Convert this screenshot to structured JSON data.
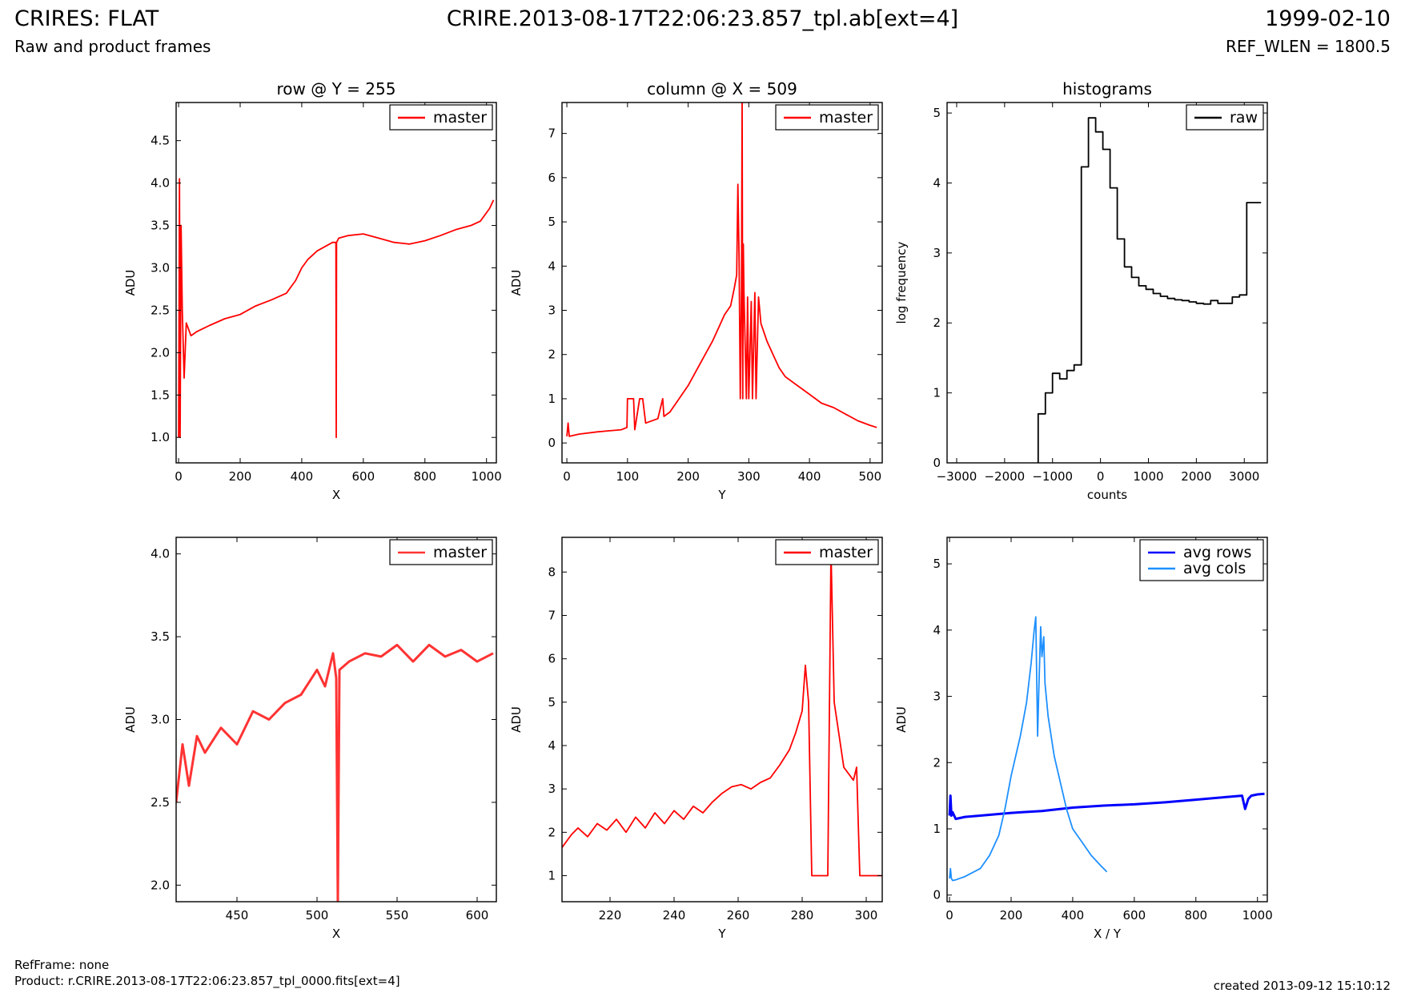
{
  "header": {
    "left_title": "CRIRES: FLAT",
    "left_subtitle": "Raw and product frames",
    "center_title": "CRIRE.2013-08-17T22:06:23.857_tpl.ab[ext=4]",
    "right_date": "1999-02-10",
    "right_subtitle": "REF_WLEN = 1800.5"
  },
  "footer": {
    "refframe": "RefFrame: none",
    "product": "Product: r.CRIRE.2013-08-17T22:06:23.857_tpl_0000.fits[ext=4]",
    "created": "created 2013-09-12 15:10:12"
  },
  "chart_data": [
    {
      "type": "line",
      "title": "row @ Y = 255",
      "xlabel": "X",
      "ylabel": "ADU",
      "xlim": [
        -8,
        1032
      ],
      "ylim": [
        0.7,
        4.95
      ],
      "xticks": [
        0,
        200,
        400,
        600,
        800,
        1000
      ],
      "yticks": [
        1.0,
        1.5,
        2.0,
        2.5,
        3.0,
        3.5,
        4.0,
        4.5
      ],
      "legend_position": "top-right",
      "series": [
        {
          "name": "master",
          "color": "#ff0000",
          "x": [
            0,
            3,
            5,
            8,
            12,
            18,
            25,
            40,
            60,
            100,
            150,
            200,
            250,
            300,
            350,
            380,
            400,
            420,
            450,
            500,
            511,
            512,
            513,
            520,
            550,
            600,
            650,
            700,
            750,
            800,
            850,
            900,
            950,
            980,
            1000,
            1010,
            1023
          ],
          "y": [
            1.0,
            4.05,
            1.0,
            3.5,
            2.5,
            1.7,
            2.35,
            2.2,
            2.25,
            2.32,
            2.4,
            2.45,
            2.55,
            2.62,
            2.7,
            2.85,
            3.0,
            3.1,
            3.2,
            3.3,
            3.3,
            1.0,
            3.3,
            3.35,
            3.38,
            3.4,
            3.35,
            3.3,
            3.28,
            3.32,
            3.38,
            3.45,
            3.5,
            3.55,
            3.65,
            3.7,
            3.8
          ]
        }
      ]
    },
    {
      "type": "line",
      "title": "column @ X = 509",
      "xlabel": "Y",
      "ylabel": "ADU",
      "xlim": [
        -8,
        520
      ],
      "ylim": [
        -0.45,
        7.7
      ],
      "xticks": [
        0,
        100,
        200,
        300,
        400,
        500
      ],
      "yticks": [
        0,
        1,
        2,
        3,
        4,
        5,
        6,
        7
      ],
      "legend_position": "top-right",
      "series": [
        {
          "name": "master",
          "color": "#ff0000",
          "x": [
            0,
            2,
            4,
            20,
            50,
            90,
            99,
            100,
            110,
            112,
            120,
            125,
            130,
            150,
            158,
            160,
            170,
            180,
            200,
            220,
            240,
            250,
            260,
            270,
            276,
            280,
            282,
            284,
            286,
            288,
            289,
            290,
            291,
            292,
            296,
            298,
            300,
            304,
            306,
            310,
            312,
            316,
            318,
            320,
            330,
            340,
            350,
            360,
            380,
            400,
            420,
            440,
            460,
            480,
            500,
            511
          ],
          "y": [
            0.15,
            0.45,
            0.15,
            0.2,
            0.25,
            0.3,
            0.35,
            1.0,
            1.0,
            0.3,
            1.0,
            1.0,
            0.45,
            0.55,
            1.0,
            0.6,
            0.7,
            0.9,
            1.3,
            1.8,
            2.3,
            2.6,
            2.9,
            3.1,
            3.5,
            3.8,
            5.85,
            4.2,
            1.0,
            3.5,
            7.8,
            1.0,
            4.5,
            3.4,
            1.0,
            3.3,
            1.0,
            3.2,
            1.0,
            3.4,
            1.0,
            3.3,
            3.0,
            2.7,
            2.3,
            2.0,
            1.7,
            1.5,
            1.3,
            1.1,
            0.9,
            0.8,
            0.65,
            0.5,
            0.4,
            0.35
          ]
        }
      ]
    },
    {
      "type": "step",
      "title": "histograms",
      "xlabel": "counts",
      "ylabel": "log frequency",
      "xlim": [
        -3200,
        3480
      ],
      "ylim": [
        0,
        5.15
      ],
      "xticks": [
        -3000,
        -2000,
        -1000,
        0,
        1000,
        2000,
        3000
      ],
      "yticks": [
        0,
        1,
        2,
        3,
        4,
        5
      ],
      "legend_position": "top-right",
      "series": [
        {
          "name": "raw",
          "color": "#000000",
          "bin_edges": [
            -1300,
            -1150,
            -1000,
            -850,
            -700,
            -550,
            -400,
            -250,
            -100,
            50,
            200,
            350,
            500,
            650,
            800,
            950,
            1100,
            1250,
            1400,
            1550,
            1700,
            1850,
            2000,
            2150,
            2300,
            2450,
            2600,
            2750,
            2900,
            3050,
            3200,
            3350
          ],
          "log_counts": [
            0.7,
            1.0,
            1.28,
            1.2,
            1.32,
            1.4,
            4.23,
            4.93,
            4.73,
            4.48,
            3.93,
            3.2,
            2.8,
            2.65,
            2.53,
            2.48,
            2.42,
            2.38,
            2.35,
            2.33,
            2.32,
            2.3,
            2.28,
            2.27,
            2.32,
            2.28,
            2.28,
            2.37,
            2.4,
            3.72,
            3.72
          ]
        }
      ]
    },
    {
      "type": "line",
      "title": "",
      "xlabel": "X",
      "ylabel": "ADU",
      "xlim": [
        412,
        612
      ],
      "ylim": [
        1.9,
        4.1
      ],
      "xticks": [
        450,
        500,
        550,
        600
      ],
      "yticks": [
        2.0,
        2.5,
        3.0,
        3.5,
        4.0
      ],
      "legend_position": "top-right",
      "series": [
        {
          "name": "master",
          "color": "#ff3333",
          "x": [
            412,
            416,
            420,
            425,
            430,
            440,
            450,
            460,
            470,
            480,
            490,
            500,
            505,
            510,
            512,
            513,
            514,
            520,
            530,
            540,
            550,
            560,
            570,
            580,
            590,
            600,
            610
          ],
          "y": [
            2.5,
            2.85,
            2.6,
            2.9,
            2.8,
            2.95,
            2.85,
            3.05,
            3.0,
            3.1,
            3.15,
            3.3,
            3.2,
            3.4,
            3.25,
            1.9,
            3.3,
            3.35,
            3.4,
            3.38,
            3.45,
            3.35,
            3.45,
            3.38,
            3.42,
            3.35,
            3.4
          ]
        }
      ]
    },
    {
      "type": "line",
      "title": "",
      "xlabel": "Y",
      "ylabel": "ADU",
      "xlim": [
        205,
        305
      ],
      "ylim": [
        0.4,
        8.8
      ],
      "xticks": [
        220,
        240,
        260,
        280,
        300
      ],
      "yticks": [
        1,
        2,
        3,
        4,
        5,
        6,
        7,
        8
      ],
      "legend_position": "top-right",
      "series": [
        {
          "name": "master",
          "color": "#ff0000",
          "x": [
            205,
            208,
            210,
            213,
            216,
            219,
            222,
            225,
            228,
            231,
            234,
            237,
            240,
            243,
            246,
            249,
            252,
            255,
            258,
            261,
            264,
            267,
            270,
            273,
            276,
            278,
            280,
            281,
            282,
            283,
            285,
            288,
            289,
            290,
            291,
            293,
            296,
            297,
            298,
            305
          ],
          "y": [
            1.65,
            1.95,
            2.1,
            1.9,
            2.2,
            2.05,
            2.3,
            2.0,
            2.35,
            2.1,
            2.45,
            2.2,
            2.5,
            2.3,
            2.6,
            2.45,
            2.7,
            2.9,
            3.05,
            3.1,
            3.0,
            3.15,
            3.25,
            3.55,
            3.9,
            4.3,
            4.8,
            5.85,
            5.0,
            1.0,
            1.0,
            1.0,
            8.5,
            5.0,
            4.5,
            3.5,
            3.2,
            3.5,
            1.0,
            1.0
          ]
        }
      ]
    },
    {
      "type": "line",
      "title": "",
      "xlabel": "X / Y",
      "ylabel": "ADU",
      "xlim": [
        -8,
        1032
      ],
      "ylim": [
        -0.1,
        5.4
      ],
      "xticks": [
        0,
        200,
        400,
        600,
        800,
        1000
      ],
      "yticks": [
        0,
        1,
        2,
        3,
        4,
        5
      ],
      "legend_position": "top-right",
      "series": [
        {
          "name": "avg rows",
          "color": "#0000ff",
          "x": [
            0,
            3,
            6,
            10,
            20,
            50,
            100,
            200,
            300,
            400,
            500,
            600,
            700,
            800,
            900,
            950,
            960,
            970,
            980,
            1000,
            1023
          ],
          "y": [
            1.2,
            1.5,
            1.2,
            1.25,
            1.15,
            1.18,
            1.2,
            1.24,
            1.27,
            1.32,
            1.35,
            1.37,
            1.4,
            1.44,
            1.48,
            1.5,
            1.3,
            1.45,
            1.5,
            1.52,
            1.53
          ]
        },
        {
          "name": "avg cols",
          "color": "#1e90ff",
          "x": [
            0,
            3,
            6,
            10,
            20,
            50,
            100,
            130,
            160,
            180,
            200,
            230,
            250,
            265,
            275,
            280,
            286,
            290,
            296,
            300,
            306,
            310,
            320,
            340,
            360,
            380,
            400,
            430,
            460,
            490,
            511
          ],
          "y": [
            0.25,
            0.4,
            0.25,
            0.22,
            0.23,
            0.28,
            0.4,
            0.6,
            0.9,
            1.3,
            1.8,
            2.4,
            2.9,
            3.5,
            4.0,
            4.2,
            2.4,
            3.1,
            4.05,
            3.6,
            3.9,
            3.2,
            2.7,
            2.1,
            1.7,
            1.3,
            1.0,
            0.8,
            0.6,
            0.45,
            0.35
          ]
        }
      ]
    }
  ]
}
